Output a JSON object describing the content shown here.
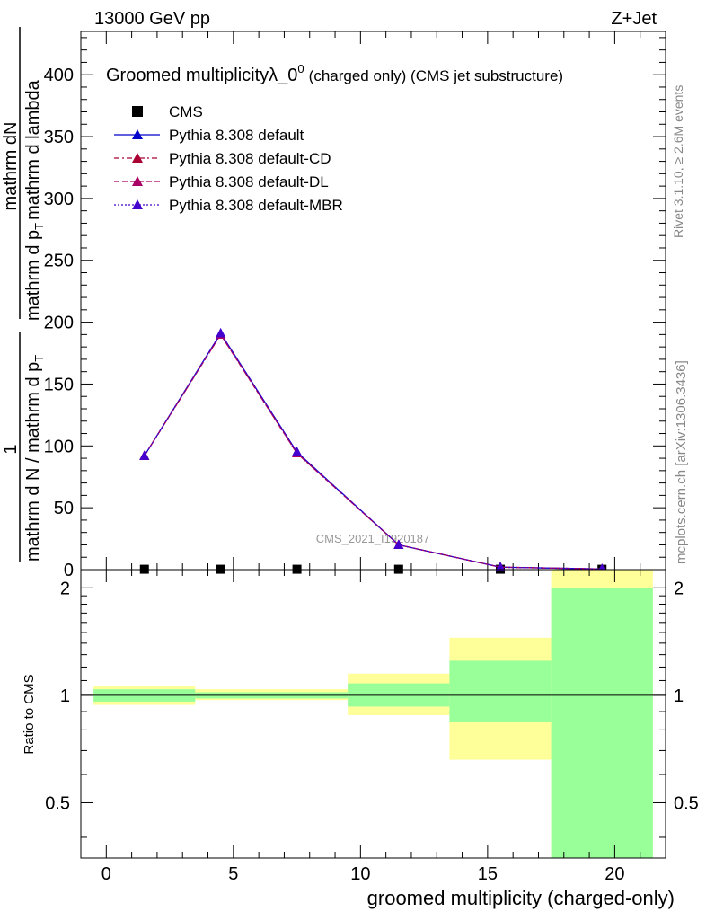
{
  "header": {
    "left": "13000 GeV pp",
    "right": "Z+Jet"
  },
  "side_labels": {
    "rivet": "Rivet 3.1.10, ≥ 2.6M events",
    "mcplots": "mcplots.cern.ch [arXiv:1306.3436]"
  },
  "chart_data": [
    {
      "type": "line",
      "title_main": "Groomed multiplicityλ_0",
      "title_sup": "0",
      "title_suffix": "(charged only) (CMS jet substructure)",
      "ylabel_numerator": "mathrm dN",
      "ylabel_denominator": "mathrm d p",
      "ylabel_denominator_tail": "mathrm d lambda",
      "ylabel_subscript": "T",
      "ylabel_prefactor_num": "1",
      "ylabel_prefactor_den": "mathrm d N / mathrm d p",
      "ylabel_prefactor_sub": "T",
      "watermark": "CMS_2021_I1920187",
      "xlim": [
        -1,
        22
      ],
      "ylim": [
        0,
        435
      ],
      "yticks": [
        0,
        50,
        100,
        150,
        200,
        250,
        300,
        350,
        400
      ],
      "bins": [
        [
          -0.5,
          3.5
        ],
        [
          3.5,
          5.5
        ],
        [
          5.5,
          9.5
        ],
        [
          9.5,
          13.5
        ],
        [
          13.5,
          17.5
        ],
        [
          17.5,
          21.5
        ]
      ],
      "x": [
        1.5,
        4.5,
        7.5,
        11.5,
        15.5,
        19.5
      ],
      "legend": [
        {
          "label": "CMS",
          "color": "#000000",
          "marker": "square",
          "dash": "none"
        },
        {
          "label": "Pythia 8.308 default",
          "color": "#0000cc",
          "marker": "triangle",
          "dash": "solid"
        },
        {
          "label": "Pythia 8.308 default-CD",
          "color": "#aa0033",
          "marker": "triangle",
          "dash": "dashdot"
        },
        {
          "label": "Pythia 8.308 default-DL",
          "color": "#aa0066",
          "marker": "triangle",
          "dash": "dashed"
        },
        {
          "label": "Pythia 8.308 default-MBR",
          "color": "#4400cc",
          "marker": "triangle",
          "dash": "dotted"
        }
      ],
      "series": [
        {
          "name": "CMS",
          "values": [
            0.3,
            0.3,
            0.3,
            0.3,
            0.3,
            0.3
          ]
        },
        {
          "name": "Pythia 8.308 default",
          "values": [
            92,
            191,
            95,
            20,
            2,
            0.5
          ]
        },
        {
          "name": "Pythia 8.308 default-CD",
          "values": [
            92,
            190,
            94,
            20,
            2,
            0.5
          ]
        },
        {
          "name": "Pythia 8.308 default-DL",
          "values": [
            92,
            190,
            94,
            20,
            2,
            0.5
          ]
        },
        {
          "name": "Pythia 8.308 default-MBR",
          "values": [
            92,
            191,
            95,
            20,
            2,
            0.5
          ]
        }
      ]
    },
    {
      "type": "area",
      "ylabel": "Ratio to CMS",
      "xlabel": "groomed multiplicity (charged-only)",
      "xlim": [
        -1,
        22
      ],
      "ylim": [
        0.35,
        2.25
      ],
      "yticks": [
        0.5,
        1,
        2
      ],
      "xticks": [
        0,
        5,
        10,
        15,
        20
      ],
      "reference": 1,
      "colors": {
        "stat": "#99ff99",
        "total": "#ffff99"
      },
      "bands": [
        {
          "x0": -0.5,
          "x1": 3.5,
          "total": [
            0.94,
            1.06
          ],
          "stat": [
            0.96,
            1.04
          ]
        },
        {
          "x0": 3.5,
          "x1": 9.5,
          "total": [
            0.97,
            1.04
          ],
          "stat": [
            0.98,
            1.02
          ]
        },
        {
          "x0": 9.5,
          "x1": 13.5,
          "total": [
            0.88,
            1.15
          ],
          "stat": [
            0.93,
            1.08
          ]
        },
        {
          "x0": 13.5,
          "x1": 17.5,
          "total": [
            0.66,
            1.45
          ],
          "stat": [
            0.84,
            1.25
          ]
        },
        {
          "x0": 17.5,
          "x1": 21.5,
          "total": [
            0.35,
            2.25
          ],
          "stat": [
            0.35,
            2.0
          ]
        }
      ]
    }
  ]
}
